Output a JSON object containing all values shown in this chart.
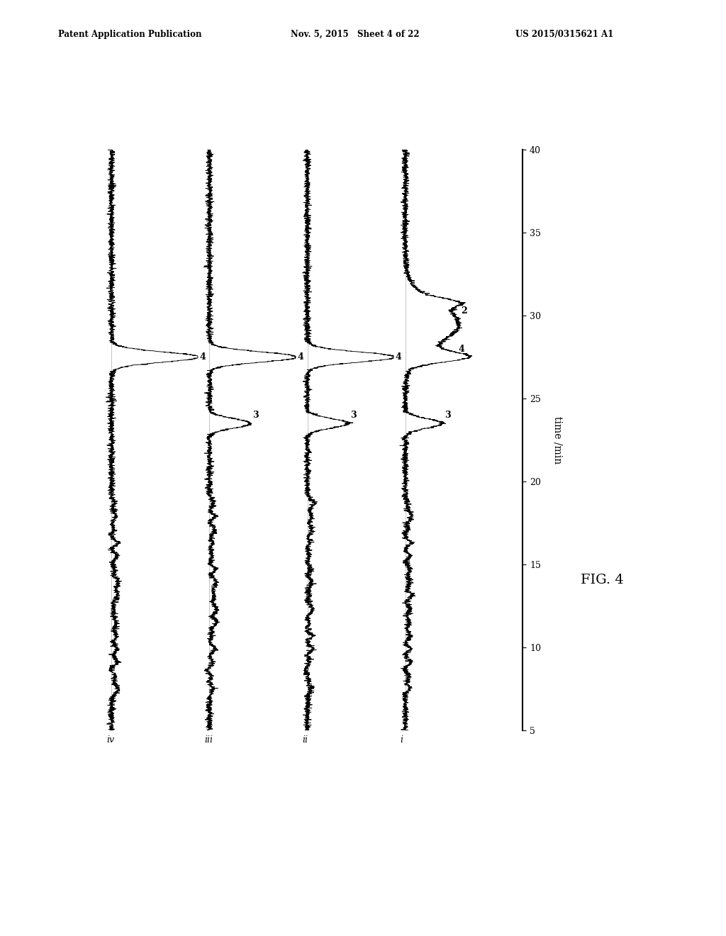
{
  "header_left": "Patent Application Publication",
  "header_mid": "Nov. 5, 2015   Sheet 4 of 22",
  "header_right": "US 2015/0315621 A1",
  "fig_label": "FIG. 4",
  "xlabel": "time /min",
  "time_range": [
    5,
    40
  ],
  "time_ticks": [
    5,
    10,
    15,
    20,
    25,
    30,
    35,
    40
  ],
  "background_color": "#ffffff",
  "line_color": "#000000"
}
